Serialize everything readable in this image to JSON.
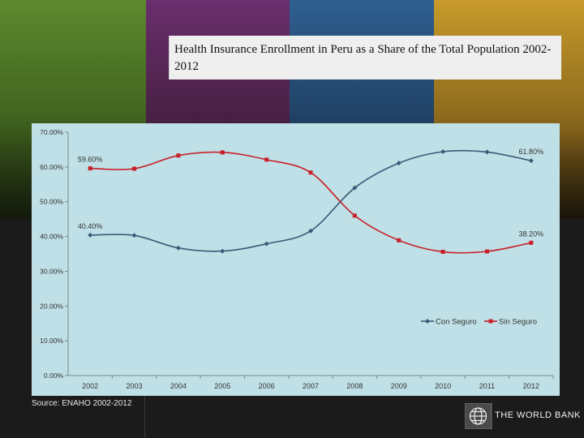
{
  "slide": {
    "title": "Health Insurance Enrollment in Peru as a Share of the Total Population 2002-2012",
    "source": "Source:  ENAHO 2002-2012",
    "logo_text": "THE WORLD BANK"
  },
  "colors": {
    "con_seguro": "#3a5a78",
    "sin_seguro": "#c8202a",
    "panel_bg": "#bfe0e6",
    "axis_text": "#333333"
  },
  "chart_data": {
    "type": "line",
    "categories": [
      "2002",
      "2003",
      "2004",
      "2005",
      "2006",
      "2007",
      "2008",
      "2009",
      "2010",
      "2011",
      "2012"
    ],
    "series": [
      {
        "name": "Con Seguro",
        "marker": "diamond",
        "values": [
          40.4,
          40.3,
          36.7,
          35.8,
          37.9,
          41.6,
          54.0,
          61.1,
          64.4,
          64.3,
          61.8
        ]
      },
      {
        "name": "Sin Seguro",
        "marker": "square",
        "values": [
          59.6,
          59.5,
          63.3,
          64.2,
          62.1,
          58.4,
          46.0,
          38.9,
          35.6,
          35.7,
          38.2
        ]
      }
    ],
    "data_labels": [
      {
        "series": 0,
        "index": 0,
        "text": "40.40%"
      },
      {
        "series": 1,
        "index": 0,
        "text": "59.60%"
      },
      {
        "series": 0,
        "index": 10,
        "text": "61.80%"
      },
      {
        "series": 1,
        "index": 10,
        "text": "38.20%"
      }
    ],
    "yticks": [
      "0.00%",
      "10.00%",
      "20.00%",
      "30.00%",
      "40.00%",
      "50.00%",
      "60.00%",
      "70.00%"
    ],
    "ylim": [
      0,
      70
    ],
    "legend_position": "bottom-right",
    "grid": false
  }
}
